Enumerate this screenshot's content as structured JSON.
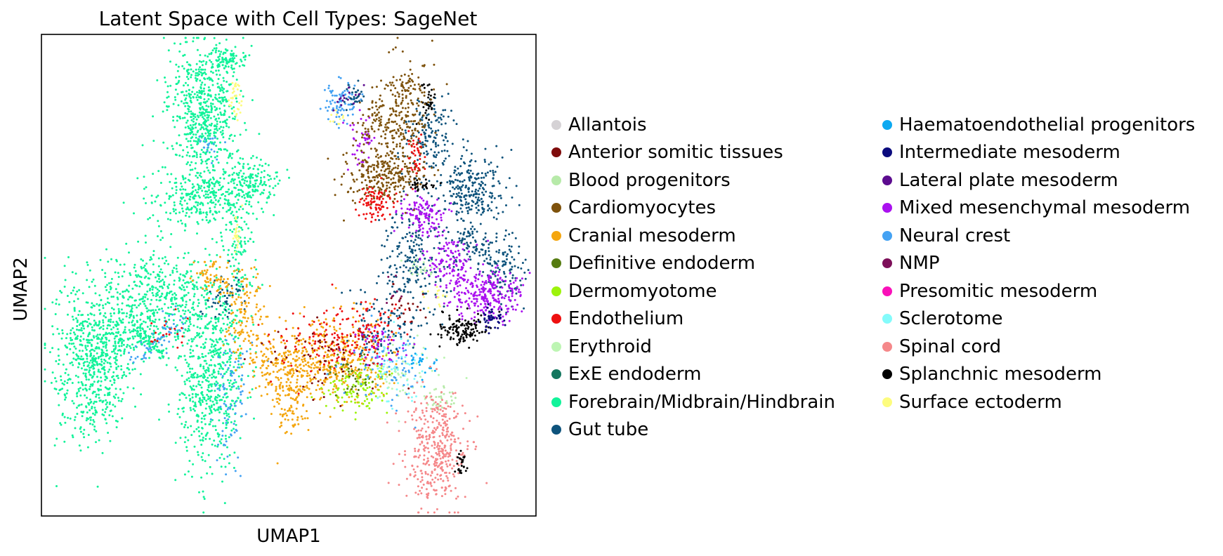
{
  "chart_data": {
    "type": "scatter",
    "title": "Latent Space with Cell Types: SageNet",
    "xlabel": "UMAP1",
    "ylabel": "UMAP2",
    "xticks": [],
    "yticks": [],
    "grid": false,
    "legend_position": "right, two columns",
    "categories": [
      {
        "name": "Allantois",
        "color": "#d5d2d5"
      },
      {
        "name": "Anterior somitic tissues",
        "color": "#7f0c0c"
      },
      {
        "name": "Blood progenitors",
        "color": "#b7eaa9"
      },
      {
        "name": "Cardiomyocytes",
        "color": "#7e520c"
      },
      {
        "name": "Cranial mesoderm",
        "color": "#f4a60f"
      },
      {
        "name": "Definitive endoderm",
        "color": "#567c11"
      },
      {
        "name": "Dermomyotome",
        "color": "#9df30c"
      },
      {
        "name": "Endothelium",
        "color": "#ee1010"
      },
      {
        "name": "Erythroid",
        "color": "#bdf5b3"
      },
      {
        "name": "ExE endoderm",
        "color": "#14775f"
      },
      {
        "name": "Forebrain/Midbrain/Hindbrain",
        "color": "#12f39a"
      },
      {
        "name": "Gut tube",
        "color": "#0e537c"
      },
      {
        "name": "Haematoendothelial progenitors",
        "color": "#0ca9f1"
      },
      {
        "name": "Intermediate mesoderm",
        "color": "#0b0b7e"
      },
      {
        "name": "Lateral plate mesoderm",
        "color": "#5c0c8f"
      },
      {
        "name": "Mixed mesenchymal mesoderm",
        "color": "#aa11ef"
      },
      {
        "name": "Neural crest",
        "color": "#44a2f3"
      },
      {
        "name": "NMP",
        "color": "#7d0f59"
      },
      {
        "name": "Presomitic mesoderm",
        "color": "#f911b9"
      },
      {
        "name": "Sclerotome",
        "color": "#84fbfb"
      },
      {
        "name": "Spinal cord",
        "color": "#f5888a"
      },
      {
        "name": "Splanchnic mesoderm",
        "color": "#000000"
      },
      {
        "name": "Surface ectoderm",
        "color": "#fdfc7e"
      }
    ]
  }
}
